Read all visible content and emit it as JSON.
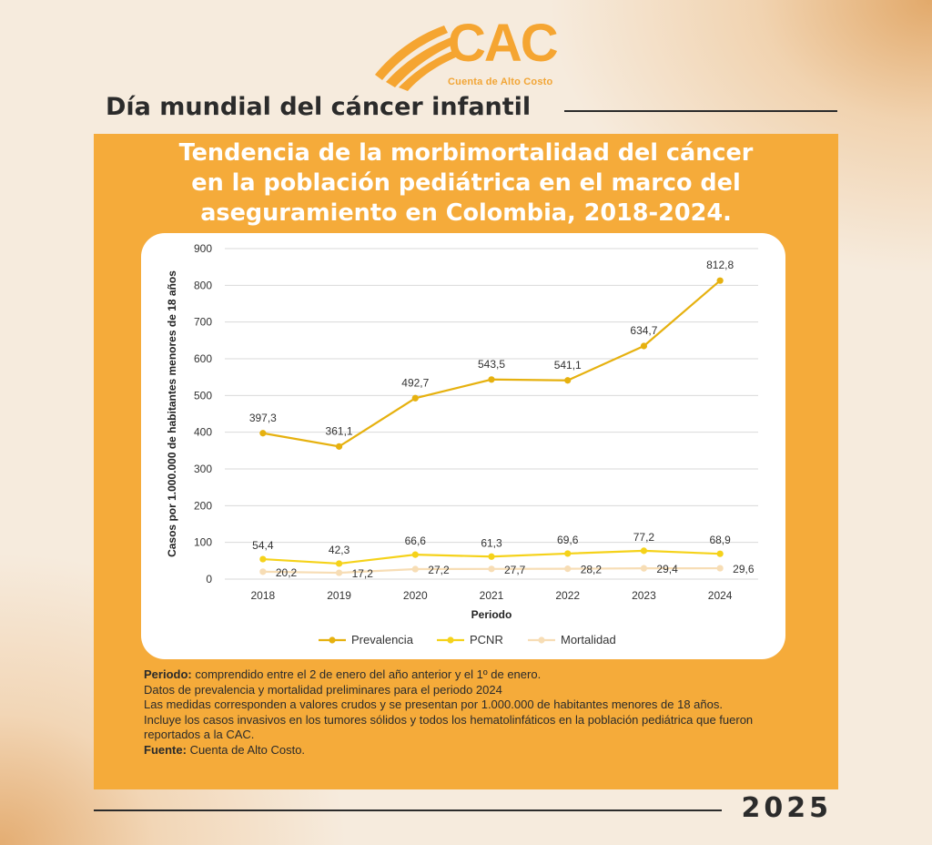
{
  "brand": {
    "name": "CAC",
    "tagline": "Cuenta de Alto Costo",
    "color": "#f5a531"
  },
  "headline": "Día mundial del cáncer infantil",
  "year": "2025",
  "colors": {
    "panel": "#f5ab3a",
    "prevalencia": "#e6b10f",
    "pcnr": "#f5d21a",
    "mortalidad": "#f7ddb5"
  },
  "notes": {
    "periodo_label": "Periodo:",
    "periodo_text": " comprendido entre el 2 de enero del año anterior y el 1º de enero.",
    "line2": "Datos de prevalencia y mortalidad preliminares para el periodo 2024",
    "line3": "Las medidas corresponden a valores crudos y se presentan por 1.000.000 de habitantes menores de 18 años.",
    "line4": "Incluye los casos invasivos en los tumores sólidos y todos los hematolinfáticos en la población pediátrica que fueron reportados a la CAC.",
    "fuente_label": "Fuente:",
    "fuente_text": " Cuenta de Alto Costo."
  },
  "chart_data": {
    "type": "line",
    "title": "Tendencia de la morbimortalidad del cáncer en la población pediátrica en el marco del aseguramiento en Colombia, 2018-2024.",
    "title_lines": [
      "Tendencia de la morbimortalidad del cáncer",
      "en la población pediátrica en el marco del",
      "aseguramiento en Colombia, 2018-2024."
    ],
    "xlabel": "Periodo",
    "ylabel": "Casos por 1.000.000 de habitantes menores de 18 años",
    "x": [
      "2018",
      "2019",
      "2020",
      "2021",
      "2022",
      "2023",
      "2024"
    ],
    "ylim": [
      0,
      900
    ],
    "yticks": [
      0,
      100,
      200,
      300,
      400,
      500,
      600,
      700,
      800,
      900
    ],
    "grid": true,
    "legend": "bottom",
    "series": [
      {
        "name": "Prevalencia",
        "values": [
          397.3,
          361.1,
          492.7,
          543.5,
          541.1,
          634.7,
          812.8
        ],
        "labels": [
          "397,3",
          "361,1",
          "492,7",
          "543,5",
          "541,1",
          "634,7",
          "812,8"
        ],
        "color": "#e6b10f"
      },
      {
        "name": "PCNR",
        "values": [
          54.4,
          42.3,
          66.6,
          61.3,
          69.6,
          77.2,
          68.9
        ],
        "labels": [
          "54,4",
          "42,3",
          "66,6",
          "61,3",
          "69,6",
          "77,2",
          "68,9"
        ],
        "color": "#f5d21a"
      },
      {
        "name": "Mortalidad",
        "values": [
          20.2,
          17.2,
          27.2,
          27.7,
          28.2,
          29.4,
          29.6
        ],
        "labels": [
          "20,2",
          "17,2",
          "27,2",
          "27,7",
          "28,2",
          "29,4",
          "29,6"
        ],
        "color": "#f7ddb5"
      }
    ]
  }
}
